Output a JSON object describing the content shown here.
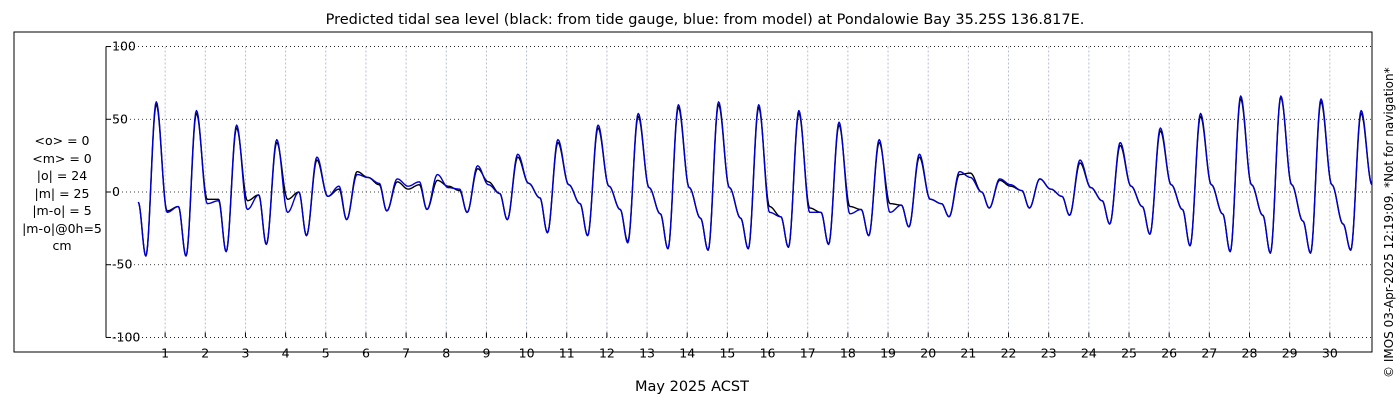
{
  "chart_data": {
    "type": "line",
    "title": "Predicted tidal sea level (black: from tide gauge, blue: from model) at Pondalowie Bay 35.25S 136.817E.",
    "xlabel": "May 2025 ACST",
    "ylabel": "",
    "xlim": [
      0.25,
      31.05
    ],
    "ylim": [
      -110,
      110
    ],
    "x_ticks": [
      "1",
      "2",
      "3",
      "4",
      "5",
      "6",
      "7",
      "8",
      "9",
      "10",
      "11",
      "12",
      "13",
      "14",
      "15",
      "16",
      "17",
      "18",
      "19",
      "20",
      "21",
      "22",
      "23",
      "24",
      "25",
      "26",
      "27",
      "28",
      "29",
      "30"
    ],
    "y_ticks": [
      100,
      50,
      0,
      -50,
      -100
    ],
    "y_tick_labels": [
      "100",
      "50",
      "0",
      "-50",
      "-100"
    ],
    "grid": true,
    "series": [
      {
        "label": "from tide gauge",
        "color": "#000000",
        "day_peaks": [
          [
            -7,
            -44,
            60,
            -13
          ],
          [
            -10,
            -44,
            54,
            -5
          ],
          [
            -5,
            -41,
            44,
            -6
          ],
          [
            -2,
            -36,
            34,
            -5
          ],
          [
            0,
            -30,
            22,
            -3
          ],
          [
            2,
            -19,
            14,
            10
          ],
          [
            5,
            -13,
            7,
            2
          ],
          [
            5,
            -12,
            8,
            4
          ],
          [
            1,
            -14,
            16,
            7
          ],
          [
            -1,
            -19,
            24,
            6
          ],
          [
            -4,
            -28,
            34,
            5
          ],
          [
            -8,
            -30,
            44,
            4
          ],
          [
            -12,
            -34,
            52,
            3
          ],
          [
            -15,
            -39,
            58,
            3
          ],
          [
            -18,
            -40,
            60,
            3
          ],
          [
            -18,
            -39,
            58,
            -10
          ],
          [
            -17,
            -38,
            54,
            -11
          ],
          [
            -14,
            -36,
            46,
            -10
          ],
          [
            -12,
            -30,
            34,
            -8
          ],
          [
            -9,
            -24,
            24,
            -5
          ],
          [
            -8,
            -17,
            12,
            13
          ],
          [
            0,
            -11,
            8,
            4
          ],
          [
            1,
            -11,
            9,
            2
          ],
          [
            -3,
            -16,
            20,
            3
          ],
          [
            -6,
            -22,
            32,
            4
          ],
          [
            -10,
            -29,
            42,
            5
          ],
          [
            -12,
            -37,
            52,
            5
          ],
          [
            -15,
            -41,
            64,
            5
          ],
          [
            -16,
            -42,
            65,
            5
          ],
          [
            -20,
            -42,
            62,
            5
          ],
          [
            -22,
            -40,
            54,
            5
          ]
        ]
      },
      {
        "label": "from model",
        "color": "#0000cc",
        "day_peaks": [
          [
            -7,
            -44,
            62,
            -14
          ],
          [
            -10,
            -44,
            56,
            -8
          ],
          [
            -6,
            -41,
            46,
            -12
          ],
          [
            -2,
            -36,
            36,
            -14
          ],
          [
            0,
            -30,
            24,
            -3
          ],
          [
            4,
            -19,
            12,
            10
          ],
          [
            6,
            -13,
            9,
            4
          ],
          [
            7,
            -12,
            12,
            3
          ],
          [
            2,
            -14,
            18,
            5
          ],
          [
            -1,
            -19,
            26,
            6
          ],
          [
            -4,
            -28,
            36,
            5
          ],
          [
            -8,
            -30,
            46,
            4
          ],
          [
            -12,
            -35,
            54,
            3
          ],
          [
            -15,
            -39,
            60,
            3
          ],
          [
            -18,
            -40,
            62,
            3
          ],
          [
            -18,
            -39,
            60,
            -14
          ],
          [
            -17,
            -38,
            56,
            -14
          ],
          [
            -14,
            -36,
            48,
            -15
          ],
          [
            -12,
            -30,
            36,
            -14
          ],
          [
            -9,
            -24,
            26,
            -5
          ],
          [
            -8,
            -17,
            14,
            10
          ],
          [
            0,
            -11,
            9,
            5
          ],
          [
            1,
            -11,
            9,
            2
          ],
          [
            -3,
            -16,
            22,
            3
          ],
          [
            -6,
            -22,
            34,
            4
          ],
          [
            -10,
            -29,
            44,
            5
          ],
          [
            -12,
            -37,
            54,
            5
          ],
          [
            -15,
            -41,
            66,
            5
          ],
          [
            -16,
            -42,
            66,
            5
          ],
          [
            -20,
            -42,
            64,
            5
          ],
          [
            -22,
            -40,
            56,
            5
          ]
        ]
      }
    ]
  },
  "stats": {
    "mean_obs": "<o> = 0",
    "mean_model": "<m> = 0",
    "abs_obs": "|o| = 24",
    "abs_model": "|m| = 25",
    "abs_diff": "|m-o| = 5",
    "diff_0h": "|m-o|@0h=5",
    "unit": "cm"
  },
  "copyright": "© IMOS 03-Apr-2025 12:19:09. *Not for navigation*"
}
